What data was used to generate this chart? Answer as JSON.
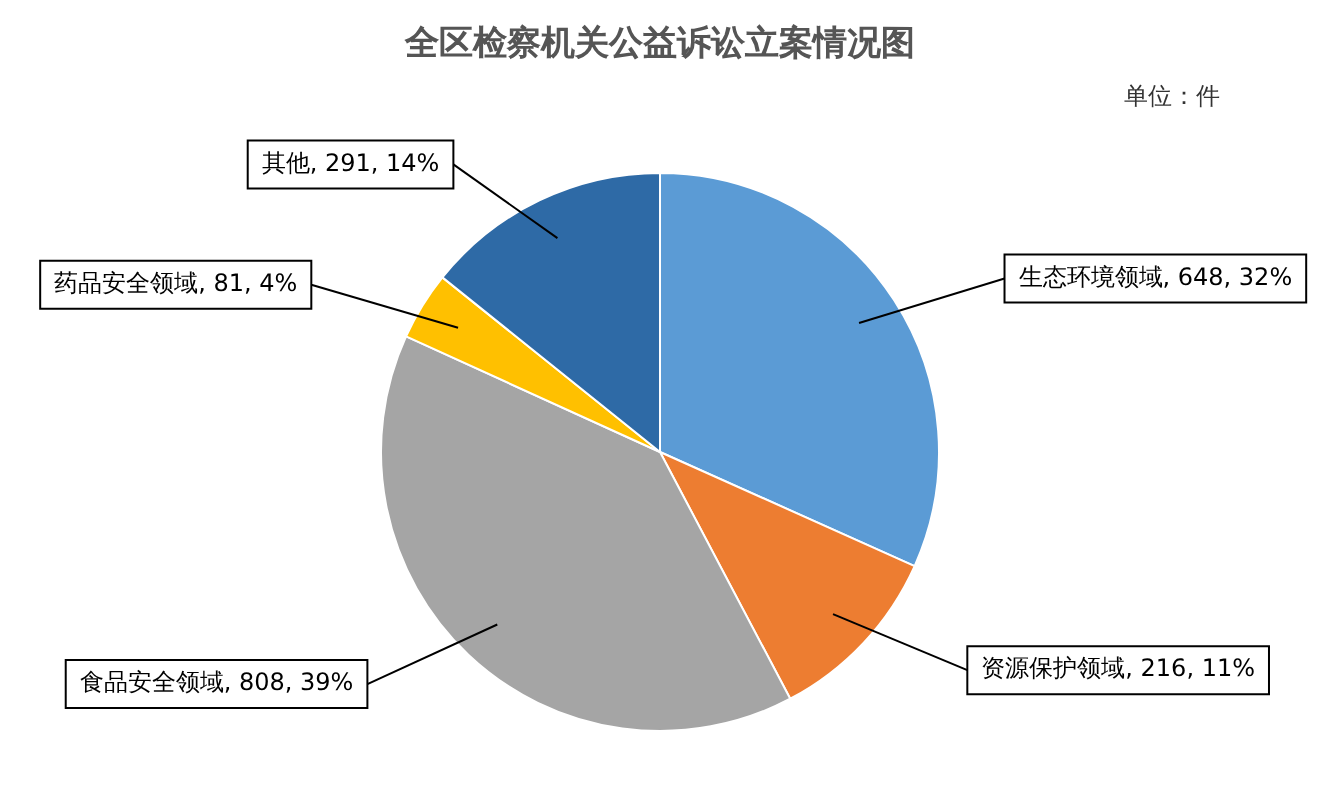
{
  "chart_data": {
    "type": "pie",
    "title": "全区检察机关公益诉讼立案情况图",
    "annotations": [
      "单位：件"
    ],
    "categories": [
      "生态环境领域",
      "资源保护领域",
      "食品安全领域",
      "药品安全领域",
      "其他"
    ],
    "values": [
      648,
      216,
      808,
      81,
      291
    ],
    "colors": [
      "#5b9bd5",
      "#ed7d31",
      "#a5a5a5",
      "#ffc000",
      "#2e6aa6"
    ],
    "value_labels": [
      "648, 32%",
      "216, 11%",
      "808, 39%",
      "81, 4%",
      "291, 14%"
    ],
    "legend": false
  }
}
